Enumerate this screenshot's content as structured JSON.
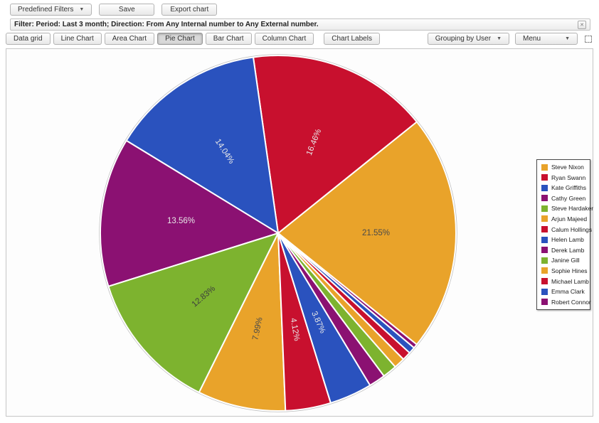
{
  "toolbar": {
    "predefined_filters": "Predefined Filters",
    "save": "Save",
    "export_chart": "Export chart"
  },
  "filter_bar": {
    "text": "Filter: Period: Last 3 month; Direction: From Any Internal number to Any External number.",
    "close": "✕"
  },
  "chart_toolbar": {
    "buttons": [
      {
        "label": "Data grid",
        "active": false
      },
      {
        "label": "Line Chart",
        "active": false
      },
      {
        "label": "Area Chart",
        "active": false
      },
      {
        "label": "Pie Chart",
        "active": true
      },
      {
        "label": "Bar Chart",
        "active": false
      },
      {
        "label": "Column Chart",
        "active": false
      }
    ],
    "chart_labels": "Chart Labels",
    "grouping": "Grouping by User",
    "menu": "Menu"
  },
  "chart_data": {
    "type": "pie",
    "title": "",
    "unit": "%",
    "legend_position": "right",
    "direction": "counterclockwise",
    "start_angle_deg": -38.79,
    "series": [
      {
        "name": "Steve Nixon",
        "value": 21.55,
        "label": "21.55%",
        "color": "#E9A32A",
        "label_color": "#4a4a4a"
      },
      {
        "name": "Ryan Swann",
        "value": 16.46,
        "label": "16.46%",
        "color": "#C8102E",
        "label_color": "#e8e8e8"
      },
      {
        "name": "Kate Griffiths",
        "value": 14.04,
        "label": "14.04%",
        "color": "#2A52BE",
        "label_color": "#e8e8e8"
      },
      {
        "name": "Cathy Green",
        "value": 13.56,
        "label": "13.56%",
        "color": "#8B1172",
        "label_color": "#e8e8e8"
      },
      {
        "name": "Steve Hardaker",
        "value": 12.83,
        "label": "12.83%",
        "color": "#7DB32F",
        "label_color": "#3d3d3d"
      },
      {
        "name": "Arjun Majeed",
        "value": 7.99,
        "label": "7.99%",
        "color": "#E9A32A",
        "label_color": "#4a4a4a"
      },
      {
        "name": "Calum Hollings",
        "value": 4.12,
        "label": "4.12%",
        "color": "#C8102E",
        "label_color": "#e8e8e8"
      },
      {
        "name": "Helen Lamb",
        "value": 3.87,
        "label": "3.87%",
        "color": "#2A52BE",
        "label_color": "#e8e8e8"
      },
      {
        "name": "Derek Lamb",
        "value": 1.5,
        "label": "",
        "color": "#8B1172",
        "label_color": ""
      },
      {
        "name": "Janine Gill",
        "value": 1.3,
        "label": "",
        "color": "#7DB32F",
        "label_color": ""
      },
      {
        "name": "Sophie Hines",
        "value": 1.0,
        "label": "",
        "color": "#E9A32A",
        "label_color": ""
      },
      {
        "name": "Michael Lamb",
        "value": 0.8,
        "label": "",
        "color": "#C8102E",
        "label_color": ""
      },
      {
        "name": "Emma Clark",
        "value": 0.6,
        "label": "",
        "color": "#2A52BE",
        "label_color": ""
      },
      {
        "name": "Robert Connor",
        "value": 0.38,
        "label": "",
        "color": "#8B1172",
        "label_color": ""
      }
    ]
  }
}
